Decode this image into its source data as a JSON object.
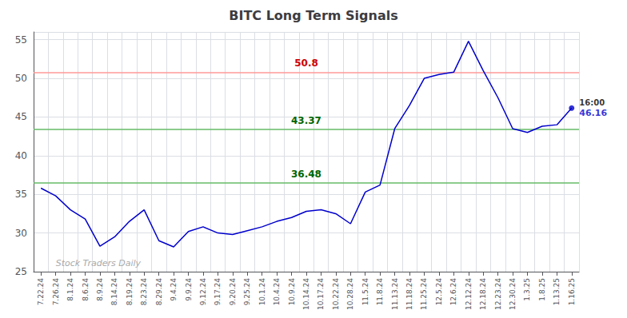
{
  "chart_data": {
    "type": "line",
    "title": "BITC Long Term Signals",
    "categories": [
      "7.22.24",
      "7.26.24",
      "8.1.24",
      "8.6.24",
      "8.9.24",
      "8.14.24",
      "8.19.24",
      "8.23.24",
      "8.29.24",
      "9.4.24",
      "9.9.24",
      "9.12.24",
      "9.17.24",
      "9.20.24",
      "9.25.24",
      "10.1.24",
      "10.4.24",
      "10.9.24",
      "10.14.24",
      "10.17.24",
      "10.22.24",
      "10.28.24",
      "11.5.24",
      "11.8.24",
      "11.13.24",
      "11.18.24",
      "11.25.24",
      "12.5.24",
      "12.6.24",
      "12.12.24",
      "12.18.24",
      "12.23.24",
      "12.30.24",
      "1.3.25",
      "1.8.25",
      "1.13.25",
      "1.16.25"
    ],
    "values": [
      35.8,
      34.8,
      33.0,
      31.8,
      28.3,
      29.5,
      31.5,
      33.0,
      29.0,
      28.2,
      30.2,
      30.8,
      30.0,
      29.8,
      30.3,
      30.8,
      31.5,
      32.0,
      32.8,
      33.0,
      32.5,
      31.2,
      35.3,
      36.2,
      43.5,
      46.5,
      50.0,
      50.5,
      50.8,
      54.8,
      51.0,
      47.5,
      43.5,
      43.0,
      43.8,
      44.0,
      46.16
    ],
    "color": "#0000cc",
    "ylim": [
      25,
      56
    ],
    "yticks": [
      25,
      30,
      35,
      40,
      45,
      50,
      55
    ],
    "grid": true,
    "reference_lines": [
      {
        "value": 50.8,
        "label": "50.8",
        "color": "#ff9999",
        "label_color": "#cc0000"
      },
      {
        "value": 43.37,
        "label": "43.37",
        "color": "#66bb66",
        "label_color": "#006600"
      },
      {
        "value": 36.48,
        "label": "36.48",
        "color": "#66bb66",
        "label_color": "#006600"
      }
    ],
    "last_point": {
      "label": "16:00",
      "value": 46.16,
      "color": "#0000cc"
    },
    "watermark": "Stock Traders Daily"
  }
}
